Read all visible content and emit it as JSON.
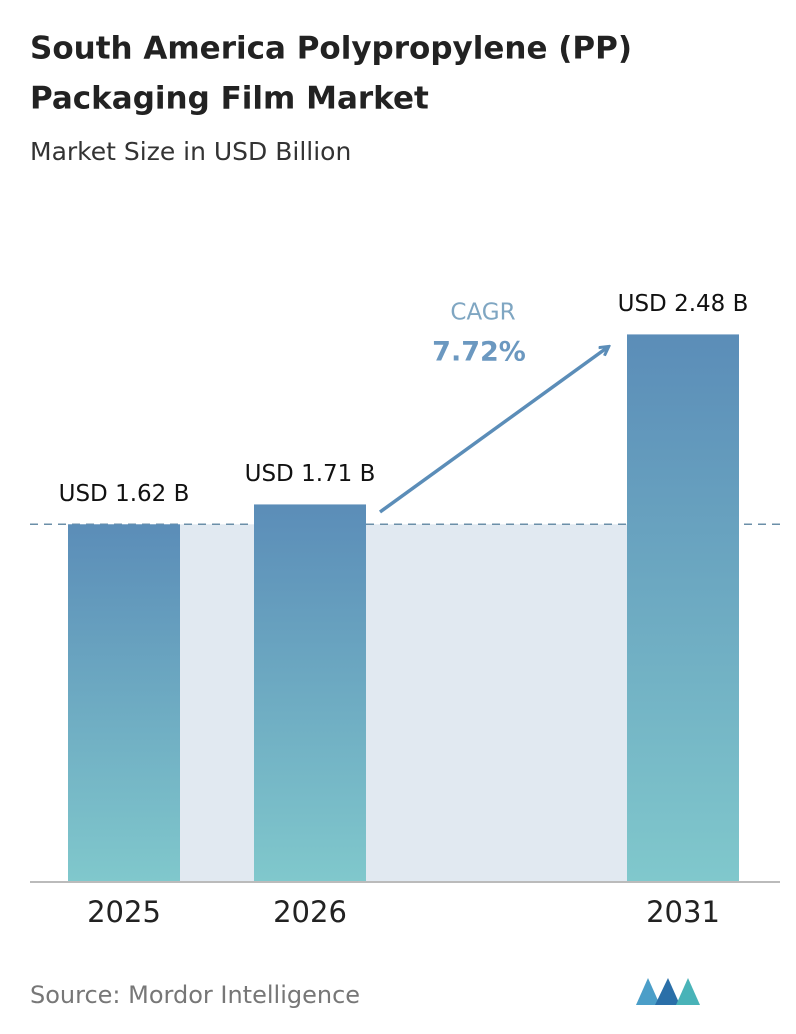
{
  "chart_data": {
    "type": "bar",
    "title": [
      "South America Polypropylene (PP)",
      "Packaging Film Market"
    ],
    "subtitle": "Market Size in USD Billion",
    "categories": [
      "2025",
      "2026",
      "2031"
    ],
    "values": [
      1.62,
      1.71,
      2.48
    ],
    "value_labels": [
      "USD 1.62 B",
      "USD 1.71 B",
      "USD 2.48 B"
    ],
    "ylim": [
      0,
      2.5
    ],
    "cagr_label": "CAGR",
    "cagr_value": "7.72%",
    "source": "Source: Mordor Intelligence"
  }
}
